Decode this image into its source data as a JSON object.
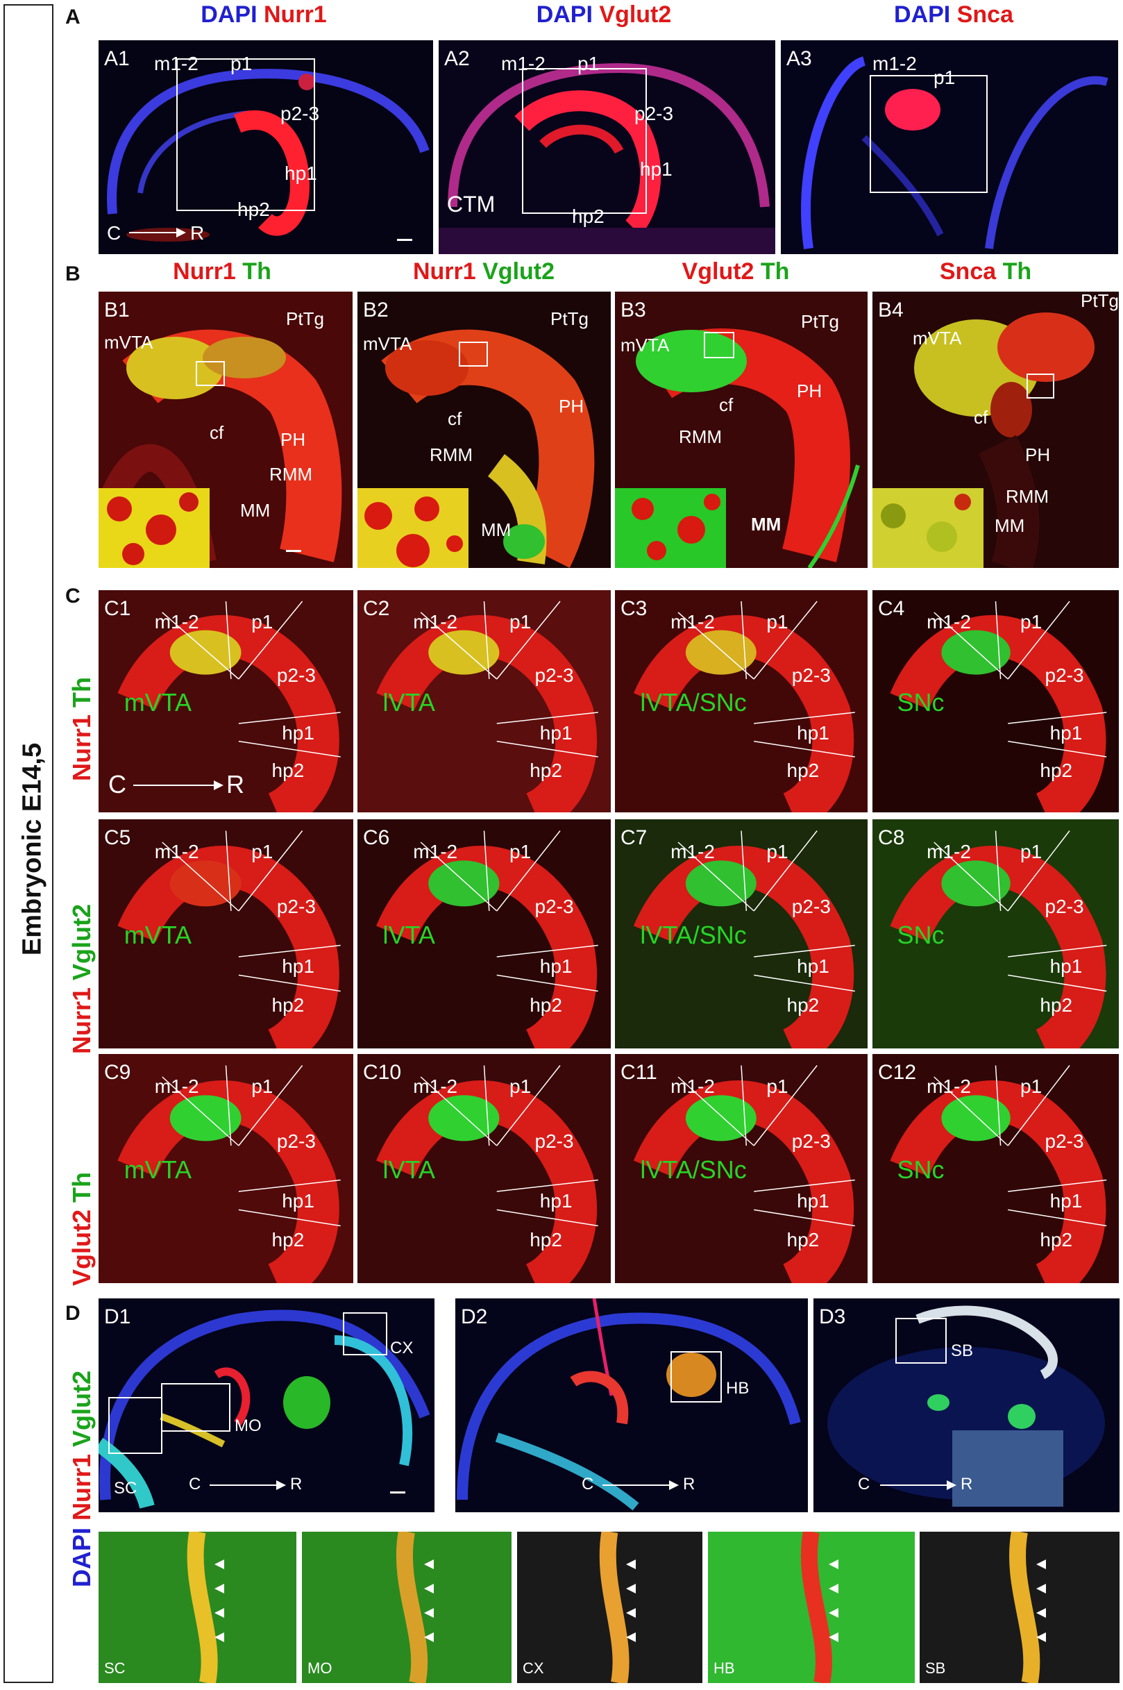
{
  "sidebar": {
    "title": "Embryonic E14,5"
  },
  "sections": {
    "A": "A",
    "B": "B",
    "C": "C",
    "D": "D"
  },
  "headerA": [
    {
      "stain1": "DAPI",
      "stain2": "Nurr1"
    },
    {
      "stain1": "DAPI",
      "stain2": "Vglut2"
    },
    {
      "stain1": "DAPI",
      "stain2": "Snca"
    }
  ],
  "headerB": [
    {
      "stain1": "Nurr1",
      "stain2": "Th"
    },
    {
      "stain1": "Nurr1",
      "stain2": "Vglut2"
    },
    {
      "stain1": "Vglut2",
      "stain2": "Th"
    },
    {
      "stain1": "Snca",
      "stain2": "Th"
    }
  ],
  "rowLabelsC": [
    {
      "stain1": "Nurr1",
      "stain2": "Th"
    },
    {
      "stain1": "Nurr1",
      "stain2": "Vglut2"
    },
    {
      "stain1": "Vglut2",
      "stain2": "Th"
    }
  ],
  "rowLabelD": {
    "stain1": "DAPI",
    "stain2": "Nurr1",
    "stain3": "Vglut2"
  },
  "panelsA": [
    {
      "id": "A1",
      "m12": "m1-2",
      "p1": "p1",
      "p23": "p2-3",
      "hp1": "hp1",
      "hp2": "hp2",
      "axisC": "C",
      "axisR": "R"
    },
    {
      "id": "A2",
      "m12": "m1-2",
      "p1": "p1",
      "p23": "p2-3",
      "hp1": "hp1",
      "hp2": "hp2",
      "ctm": "CTM"
    },
    {
      "id": "A3",
      "m12": "m1-2",
      "p1": "p1"
    }
  ],
  "panelsB": [
    {
      "id": "B1",
      "mvta": "mVTA",
      "ptg": "PtTg",
      "cf": "cf",
      "ph": "PH",
      "rmm": "RMM",
      "mm": "MM"
    },
    {
      "id": "B2",
      "mvta": "mVTA",
      "ptg": "PtTg",
      "cf": "cf",
      "ph": "PH",
      "rmm": "RMM",
      "mm": "MM"
    },
    {
      "id": "B3",
      "mvta": "mVTA",
      "ptg": "PtTg",
      "cf": "cf",
      "ph": "PH",
      "rmm": "RMM",
      "mm": "MM"
    },
    {
      "id": "B4",
      "mvta": "mVTA",
      "ptg": "PtTg",
      "cf": "cf",
      "ph": "PH",
      "rmm": "RMM",
      "mm": "MM"
    }
  ],
  "panelsC": [
    {
      "id": "C1",
      "region": "mVTA"
    },
    {
      "id": "C2",
      "region": "lVTA"
    },
    {
      "id": "C3",
      "region": "lVTA/SNc"
    },
    {
      "id": "C4",
      "region": "SNc"
    },
    {
      "id": "C5",
      "region": "mVTA"
    },
    {
      "id": "C6",
      "region": "lVTA"
    },
    {
      "id": "C7",
      "region": "lVTA/SNc"
    },
    {
      "id": "C8",
      "region": "SNc"
    },
    {
      "id": "C9",
      "region": "mVTA"
    },
    {
      "id": "C10",
      "region": "lVTA"
    },
    {
      "id": "C11",
      "region": "lVTA/SNc"
    },
    {
      "id": "C12",
      "region": "SNc"
    }
  ],
  "cLabels": {
    "m12": "m1-2",
    "p1": "p1",
    "p23": "p2-3",
    "hp1": "hp1",
    "hp2": "hp2",
    "axisC": "C",
    "axisR": "R"
  },
  "panelsD": [
    {
      "id": "D1",
      "cx": "CX",
      "mo": "MO",
      "sc": "SC",
      "axisC": "C",
      "axisR": "R"
    },
    {
      "id": "D2",
      "hb": "HB",
      "axisC": "C",
      "axisR": "R"
    },
    {
      "id": "D3",
      "sb": "SB",
      "axisC": "C",
      "axisR": "R"
    }
  ],
  "zoomD": [
    "SC",
    "MO",
    "CX",
    "HB",
    "SB"
  ],
  "colors": {
    "dapi": "#2020d0",
    "red": "#e01818",
    "green": "#1aa31a"
  }
}
